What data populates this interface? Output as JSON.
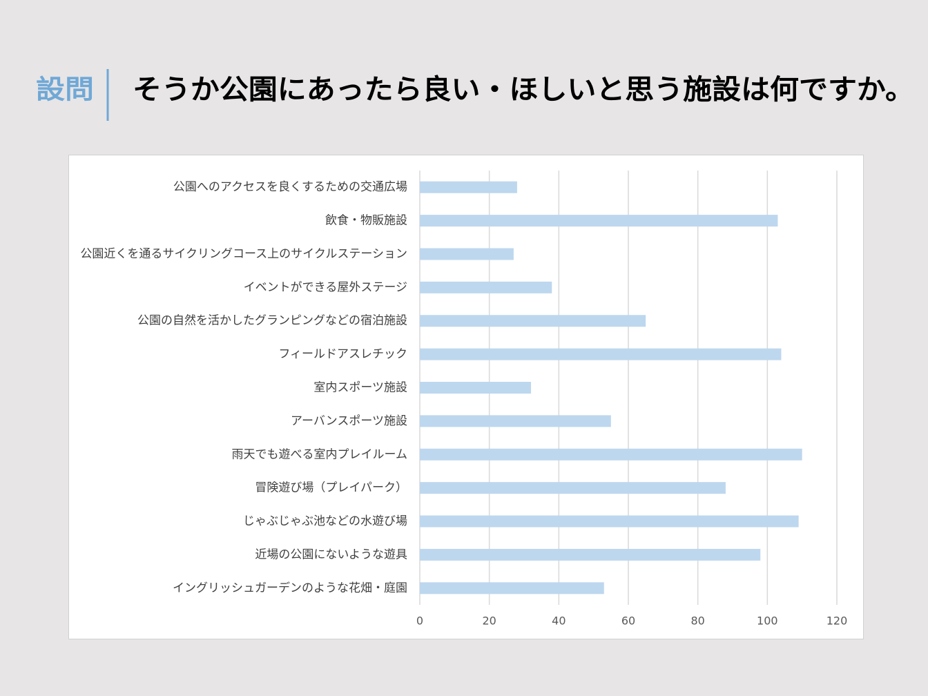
{
  "chart_data": {
    "type": "barh",
    "section_label": "設問",
    "title": "そうか公園にあったら良い・ほしいと思う施設は何ですか。",
    "categories": [
      "公園へのアクセスを良くするための交通広場",
      "飲食・物販施設",
      "公園近くを通るサイクリングコース上のサイクルステーション",
      "イベントができる屋外ステージ",
      "公園の自然を活かしたグランピングなどの宿泊施設",
      "フィールドアスレチック",
      "室内スポーツ施設",
      "アーバンスポーツ施設",
      "雨天でも遊べる室内プレイルーム",
      "冒険遊び場（プレイパーク）",
      "じゃぶじゃぶ池などの水遊び場",
      "近場の公園にないような遊具",
      "イングリッシュガーデンのような花畑・庭園"
    ],
    "values": [
      28,
      103,
      27,
      38,
      65,
      104,
      32,
      55,
      110,
      88,
      109,
      98,
      53
    ],
    "color": "#bdd7ee",
    "xlim": [
      0,
      120
    ],
    "xticks": [
      0,
      20,
      40,
      60,
      80,
      100,
      120
    ],
    "grid": true
  }
}
